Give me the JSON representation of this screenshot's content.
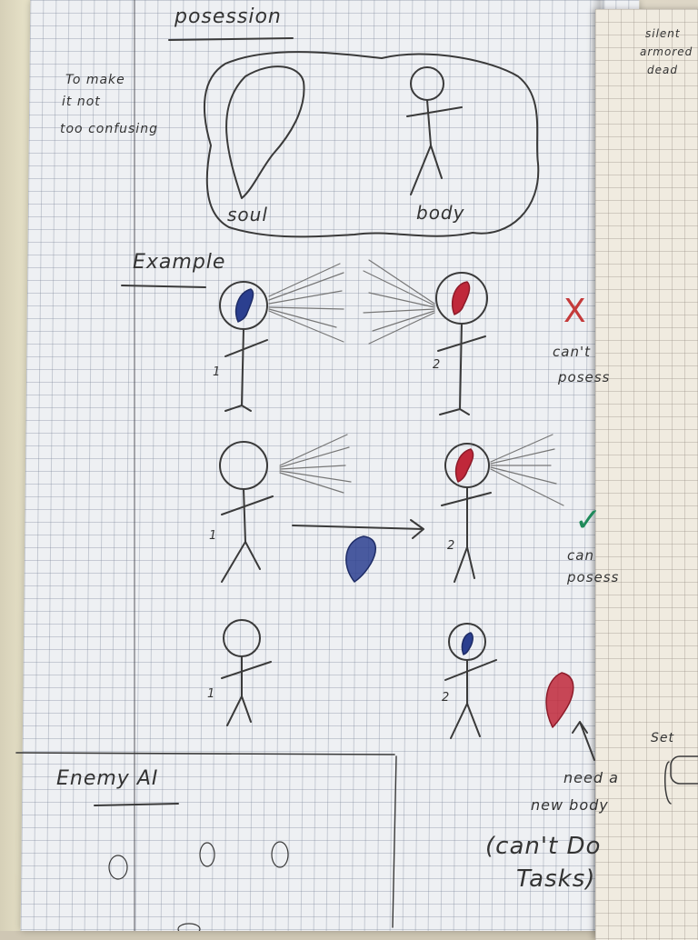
{
  "notebook": {
    "title": "posession",
    "side_note": [
      "To make",
      "it not",
      "too confusing"
    ],
    "labels": {
      "soul": "soul",
      "body": "body"
    },
    "example_heading": "Example",
    "figure_numbers": [
      "1",
      "2"
    ],
    "result_cant": {
      "mark": "X",
      "text": [
        "can't",
        "posess"
      ]
    },
    "result_can": {
      "mark": "✓",
      "text": [
        "can",
        "posess"
      ]
    },
    "need_body": [
      "need a",
      "new body"
    ],
    "cant_do_tasks": [
      "(can't Do",
      "Tasks)"
    ],
    "enemy_heading": "Enemy AI"
  },
  "right_page": {
    "top_note": [
      "silent",
      "armored",
      "dead"
    ],
    "set_label": "Set"
  },
  "colors": {
    "pencil": "#3a3a3a",
    "blue_soul": "#2b3f8f",
    "red_soul": "#c0283a",
    "check_green": "#1f8a5a",
    "x_red": "#c43a3a"
  }
}
